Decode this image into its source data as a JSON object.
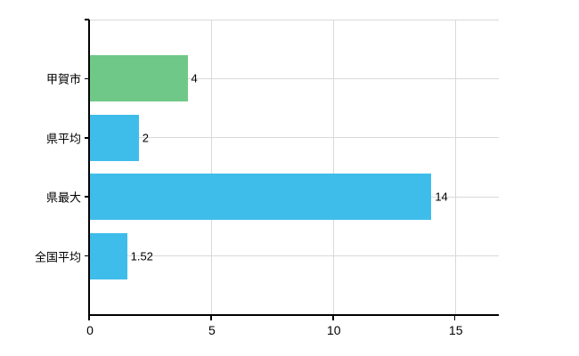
{
  "chart_data": {
    "type": "bar",
    "orientation": "horizontal",
    "title": "",
    "categories": [
      "甲賀市",
      "県平均",
      "県最大",
      "全国平均"
    ],
    "values": [
      4,
      2,
      14,
      1.52
    ],
    "value_labels": [
      "4",
      "2",
      "14",
      "1.52"
    ],
    "bar_colors": [
      "#6fc887",
      "#3ebdeb",
      "#3ebdeb",
      "#3ebdeb"
    ],
    "x_ticks": [
      0,
      5,
      10,
      15
    ],
    "x_tick_labels": [
      "0",
      "5",
      "10",
      "15"
    ],
    "xlim": [
      0,
      16.8
    ],
    "grid": true,
    "legend": false,
    "xlabel": "",
    "ylabel": ""
  },
  "colors": {
    "background": "#ffffff",
    "grid": "#d9d9d9",
    "axis": "#000000",
    "text": "#000000",
    "bar_green": "#6fc887",
    "bar_blue": "#3ebdeb"
  }
}
